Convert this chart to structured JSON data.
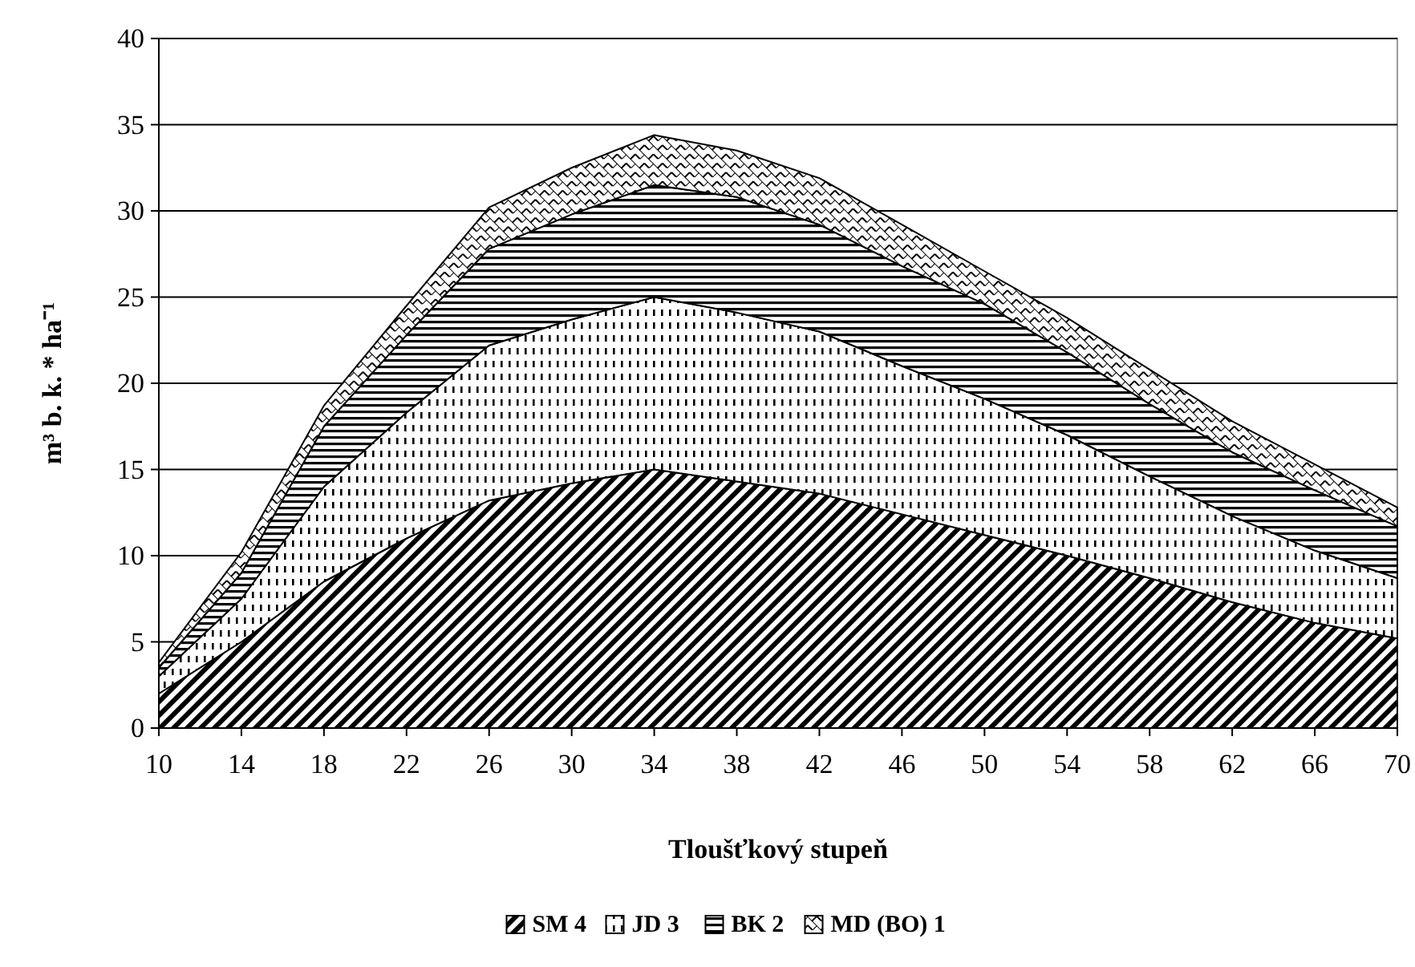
{
  "chart_data": {
    "type": "area",
    "stacked": true,
    "xlabel": "Tloušťkový stupeň",
    "ylabel": "m³ b. k. * ha⁻¹",
    "x": [
      10,
      14,
      18,
      22,
      26,
      30,
      34,
      38,
      42,
      46,
      50,
      54,
      58,
      62,
      66,
      70
    ],
    "series": [
      {
        "name": "SM 4",
        "color": "#000000",
        "values": [
          2,
          5,
          8.5,
          11,
          13.2,
          14.2,
          15,
          14.3,
          13.6,
          12.4,
          11.2,
          10,
          8.7,
          7.3,
          6.1,
          5.2
        ]
      },
      {
        "name": "JD 3",
        "color": "#000000",
        "values": [
          1,
          2.5,
          5.5,
          7.3,
          9,
          9.5,
          10,
          9.8,
          9.4,
          8.6,
          7.9,
          7,
          5.9,
          5,
          4.2,
          3.5
        ]
      },
      {
        "name": "BK 2",
        "color": "#000000",
        "values": [
          0.5,
          1.5,
          3.5,
          4.5,
          5.6,
          6.1,
          6.5,
          6.7,
          6.2,
          5.8,
          5.5,
          4.8,
          4.2,
          3.7,
          3.5,
          3.0
        ]
      },
      {
        "name": "MD (BO) 1",
        "color": "#000000",
        "values": [
          0.3,
          1.2,
          1.2,
          1.7,
          2.4,
          2.7,
          2.9,
          2.7,
          2.7,
          2.4,
          1.9,
          2.0,
          2.0,
          1.8,
          1.5,
          1.1
        ]
      }
    ],
    "xlim": [
      10,
      70
    ],
    "xticks": [
      10,
      14,
      18,
      22,
      26,
      30,
      34,
      38,
      42,
      46,
      50,
      54,
      58,
      62,
      66,
      70
    ],
    "ylim": [
      0,
      40
    ],
    "yticks": [
      0,
      5,
      10,
      15,
      20,
      25,
      30,
      35,
      40
    ],
    "grid": "y",
    "legend": "bottom"
  }
}
